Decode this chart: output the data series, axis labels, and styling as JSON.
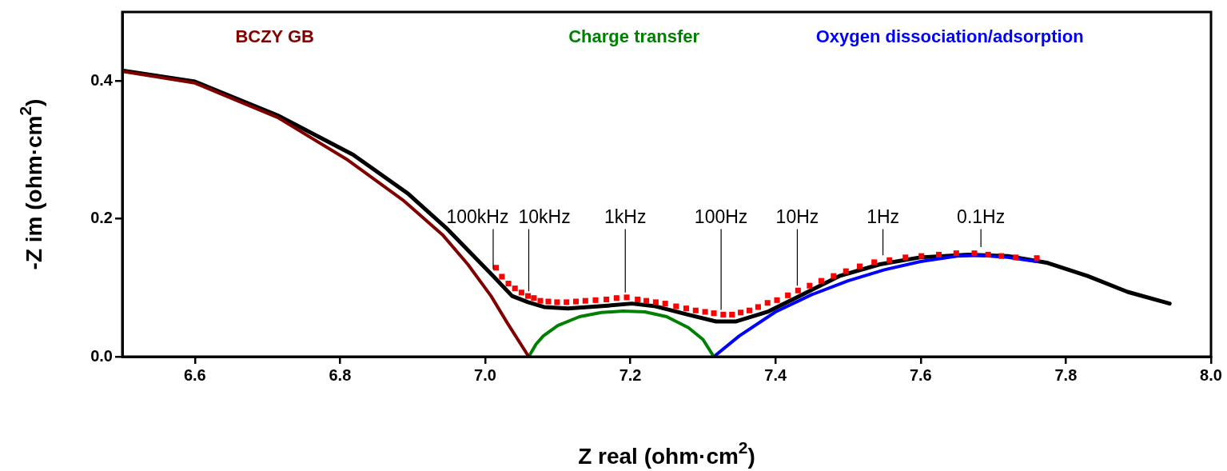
{
  "chart_data": {
    "type": "line",
    "xlabel": "Z real (ohm·cm$^{2}$)",
    "ylabel": "-Z im (ohm·cm$^{2}$)",
    "xlim": [
      6.5,
      8.0
    ],
    "xticks": [
      6.6,
      6.8,
      {
        "value": 7,
        "label": "7.0"
      },
      7.2,
      7.4,
      7.6,
      7.8,
      {
        "value": 8,
        "label": "8.0"
      }
    ],
    "ylim": [
      0,
      0.5
    ],
    "yticks": [
      {
        "value": 0,
        "label": "0.0"
      },
      0.2,
      0.4
    ],
    "grid": false,
    "legend": false,
    "series": [
      {
        "name": "BCZY GB",
        "color": "#800000",
        "x": [
          6.5,
          6.6,
          6.714,
          6.811,
          6.888,
          6.941,
          6.976,
          7.008,
          7.031,
          7.06
        ],
        "values": [
          0.414,
          0.397,
          0.347,
          0.285,
          0.226,
          0.177,
          0.134,
          0.088,
          0.048,
          0
        ]
      },
      {
        "name": "Charge transfer",
        "color": "#008000",
        "x": [
          7.06,
          7.07,
          7.08,
          7.1,
          7.13,
          7.16,
          7.19,
          7.22,
          7.25,
          7.28,
          7.3,
          7.315
        ],
        "values": [
          0,
          0.018,
          0.03,
          0.045,
          0.058,
          0.064,
          0.066,
          0.065,
          0.058,
          0.042,
          0.025,
          0
        ]
      },
      {
        "name": "Oxygen dissociation/adsorption",
        "color": "#0000ff",
        "x": [
          7.315,
          7.35,
          7.4,
          7.45,
          7.5,
          7.55,
          7.6,
          7.65,
          7.68,
          7.72,
          7.76
        ],
        "values": [
          0,
          0.03,
          0.065,
          0.09,
          0.11,
          0.126,
          0.138,
          0.146,
          0.147,
          0.144,
          0.138
        ]
      },
      {
        "color": "#000000",
        "x": [
          6.5,
          6.6,
          6.714,
          6.818,
          6.893,
          6.946,
          7.011,
          7.037,
          7.059,
          7.081,
          7.114,
          7.169,
          7.202,
          7.235,
          7.279,
          7.318,
          7.345,
          7.389,
          7.433,
          7.488,
          7.544,
          7.599,
          7.665,
          7.72,
          7.775,
          7.83,
          7.885,
          7.943
        ],
        "values": [
          0.415,
          0.399,
          0.35,
          0.293,
          0.237,
          0.187,
          0.117,
          0.088,
          0.079,
          0.072,
          0.07,
          0.074,
          0.077,
          0.073,
          0.061,
          0.051,
          0.051,
          0.065,
          0.088,
          0.117,
          0.134,
          0.144,
          0.148,
          0.146,
          0.136,
          0.117,
          0.094,
          0.077
        ]
      },
      {
        "type": "scatter",
        "marker": "square",
        "color": "#ff0000",
        "x": [
          7.015,
          7.023,
          7.032,
          7.041,
          7.05,
          7.059,
          7.067,
          7.076,
          7.087,
          7.099,
          7.112,
          7.125,
          7.138,
          7.152,
          7.167,
          7.181,
          7.195,
          7.21,
          7.222,
          7.235,
          7.248,
          7.263,
          7.277,
          7.29,
          7.303,
          7.315,
          7.328,
          7.34,
          7.352,
          7.364,
          7.376,
          7.389,
          7.402,
          7.417,
          7.431,
          7.447,
          7.463,
          7.48,
          7.497,
          7.516,
          7.536,
          7.557,
          7.579,
          7.601,
          7.625,
          7.649,
          7.674,
          7.693,
          7.711,
          7.731,
          7.76
        ],
        "values": [
          0.129,
          0.116,
          0.106,
          0.099,
          0.093,
          0.088,
          0.085,
          0.081,
          0.08,
          0.079,
          0.079,
          0.08,
          0.081,
          0.082,
          0.083,
          0.085,
          0.086,
          0.083,
          0.081,
          0.079,
          0.077,
          0.073,
          0.07,
          0.067,
          0.065,
          0.063,
          0.061,
          0.061,
          0.064,
          0.067,
          0.072,
          0.078,
          0.082,
          0.089,
          0.096,
          0.103,
          0.11,
          0.117,
          0.124,
          0.131,
          0.137,
          0.14,
          0.144,
          0.146,
          0.148,
          0.15,
          0.15,
          0.148,
          0.146,
          0.144,
          0.143
        ]
      }
    ],
    "annotations": [
      {
        "text": "100kHz",
        "x": 7.011,
        "y": 0.12
      },
      {
        "text": "10kHz",
        "x": 7.06,
        "y": 0.088
      },
      {
        "text": "1kHz",
        "x": 7.193,
        "y": 0.086
      },
      {
        "text": "100Hz",
        "x": 7.325,
        "y": 0.061
      },
      {
        "text": "10Hz",
        "x": 7.43,
        "y": 0.096
      },
      {
        "text": "1Hz",
        "x": 7.548,
        "y": 0.14
      },
      {
        "text": "0.1Hz",
        "x": 7.683,
        "y": 0.152
      }
    ]
  }
}
